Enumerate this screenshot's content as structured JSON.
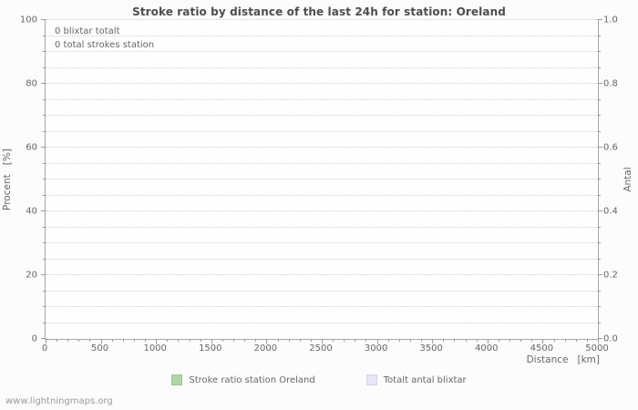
{
  "title": "Stroke ratio by distance of the last 24h for station: Oreland",
  "station": "Oreland",
  "annotations": [
    "0 blixtar totalt",
    "0 total strokes station"
  ],
  "watermark": "www.lightningmaps.org",
  "legend": [
    {
      "label": "Stroke ratio station Oreland",
      "color": "#afd7a5",
      "border": "#9cc492"
    },
    {
      "label": "Totalt antal blixtar",
      "color": "#e7e5f7",
      "border": "#d4d2ea"
    }
  ],
  "colors": {
    "title_text": "#4d4d4d",
    "axis_text": "#666666",
    "gridline": "#cfcfcf",
    "axis_line": "#a8a8a8",
    "background": "#fcfcfc"
  },
  "chart_data": {
    "type": "bar",
    "title": "Stroke ratio by distance of the last 24h for station: Oreland",
    "grid": "horizontal-dotted",
    "legend_position": "bottom",
    "x": {
      "label": "Distance   [km]",
      "min": 0,
      "max": 5000,
      "tick_step": 500,
      "minor_step": 100,
      "tick_labels": [
        "0",
        "500",
        "1000",
        "1500",
        "2000",
        "2500",
        "3000",
        "3500",
        "4000",
        "4500",
        "5000"
      ]
    },
    "y_left": {
      "label": "Procent   [%]",
      "min": 0,
      "max": 100,
      "tick_step": 20,
      "minor_step": 5,
      "tick_labels": [
        "0",
        "20",
        "40",
        "60",
        "80",
        "100"
      ]
    },
    "y_right": {
      "label": "Antal",
      "min": 0.0,
      "max": 1.0,
      "tick_step": 0.2,
      "tick_labels": [
        "0.0",
        "0.2",
        "0.4",
        "0.6",
        "0.8",
        "1.0"
      ]
    },
    "series": [
      {
        "name": "Stroke ratio station Oreland",
        "values": []
      },
      {
        "name": "Totalt antal blixtar",
        "values": []
      }
    ],
    "totals": {
      "blixtar_totalt": 0,
      "total_strokes_station": 0
    }
  }
}
